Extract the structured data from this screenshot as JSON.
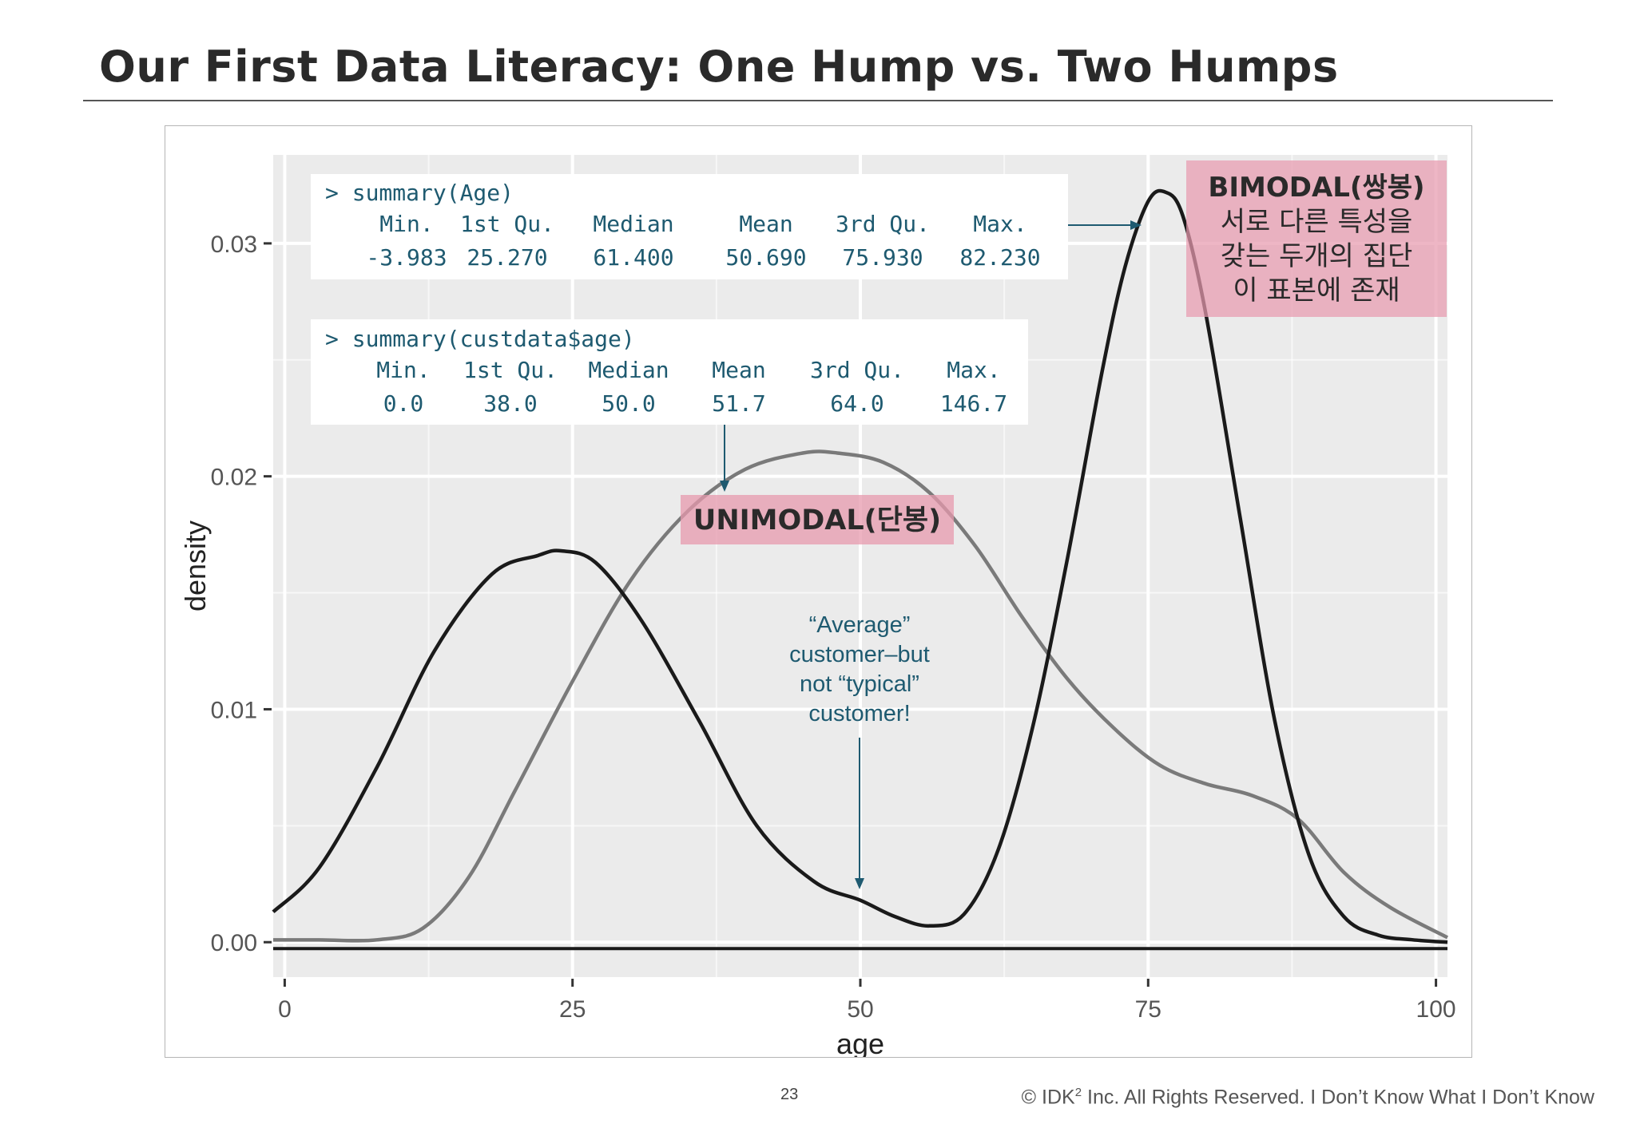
{
  "slide": {
    "title": "Our First Data Literacy: One Hump vs. Two Humps",
    "page_number": "23",
    "footer": {
      "copyright": "© IDK",
      "superscript": "2",
      "company": " Inc. All Rights Reserved.  I Don’t Know What I Don’t Know"
    }
  },
  "colors": {
    "panel": "#ebebeb",
    "grid": "#ffffff",
    "bimodal_line": "#1a1a1a",
    "unimodal_line": "#7a7a7a",
    "annotation_teal": "#1e5a70",
    "highlight_pink": "#e79aae"
  },
  "chart_data": {
    "type": "line",
    "title": "",
    "xlabel": "age",
    "ylabel": "density",
    "xlim": [
      -1,
      101
    ],
    "ylim": [
      -0.0015,
      0.0338
    ],
    "x_ticks": [
      0,
      25,
      50,
      75,
      100
    ],
    "x_tick_labels": [
      "0",
      "25",
      "50",
      "75",
      "100"
    ],
    "y_ticks": [
      0,
      0.01,
      0.02,
      0.03
    ],
    "y_tick_labels": [
      "0.00",
      "0.01",
      "0.02",
      "0.03"
    ],
    "grid": true,
    "series": [
      {
        "style": "black",
        "x": [
          -1,
          3,
          8,
          13,
          18,
          22,
          24,
          27,
          31,
          36,
          41,
          46,
          50,
          53,
          56,
          59,
          62,
          65,
          68,
          71,
          73,
          75,
          76.5,
          78,
          80,
          83,
          86,
          89,
          92,
          95,
          98,
          101
        ],
        "y": [
          0.0013,
          0.0032,
          0.0075,
          0.0125,
          0.0158,
          0.0166,
          0.0168,
          0.0163,
          0.0138,
          0.0095,
          0.005,
          0.0026,
          0.0018,
          0.0011,
          0.0007,
          0.0012,
          0.004,
          0.0093,
          0.0165,
          0.0245,
          0.029,
          0.0318,
          0.0322,
          0.0312,
          0.027,
          0.0182,
          0.0095,
          0.0037,
          0.0011,
          0.0003,
          0.0001,
          0
        ]
      },
      {
        "style": "gray",
        "x": [
          -1,
          3,
          8,
          12,
          16,
          20,
          25,
          30,
          35,
          40,
          45,
          48,
          52,
          56,
          60,
          64,
          68,
          72,
          76,
          80,
          84,
          88,
          92,
          96,
          101
        ],
        "y": [
          0.0001,
          0.0001,
          0.0001,
          0.0006,
          0.0028,
          0.0065,
          0.0112,
          0.0155,
          0.0185,
          0.0203,
          0.021,
          0.021,
          0.0206,
          0.0193,
          0.017,
          0.014,
          0.0113,
          0.0092,
          0.0076,
          0.0068,
          0.0063,
          0.0053,
          0.003,
          0.0015,
          0.0002
        ]
      }
    ],
    "annotations": {
      "summary_age": {
        "command": "> summary(Age)",
        "headers": [
          "Min.",
          "1st Qu.",
          "Median",
          "Mean",
          "3rd Qu.",
          "Max."
        ],
        "values": [
          "-3.983",
          "25.270",
          "61.400",
          "50.690",
          "75.930",
          "82.230"
        ]
      },
      "summary_custdata": {
        "command": "> summary(custdata$age)",
        "headers": [
          "Min.",
          "1st Qu.",
          "Median",
          "Mean",
          "3rd Qu.",
          "Max."
        ],
        "values": [
          "0.0",
          "38.0",
          "50.0",
          "51.7",
          "64.0",
          "146.7"
        ]
      },
      "average_note": [
        "“Average”",
        "customer–but",
        "not “typical”",
        "customer!"
      ],
      "unimodal_label": "UNIMODAL(단봉)",
      "bimodal_label": "BIMODAL(쌍봉)",
      "bimodal_desc": [
        "서로 다른 특성을",
        "갖는 두개의 집단",
        "이 표본에 존재"
      ]
    }
  }
}
